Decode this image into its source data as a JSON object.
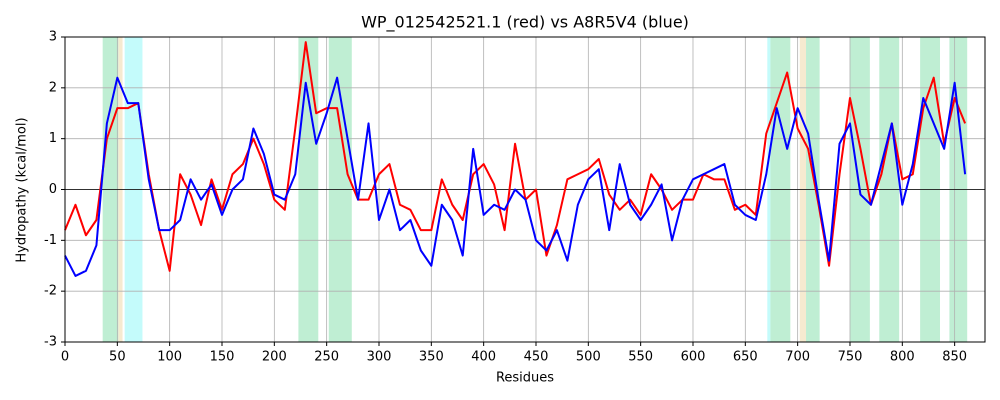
{
  "chart_data": {
    "type": "line",
    "title": "WP_012542521.1 (red) vs A8R5V4 (blue)",
    "x_label": "Residues",
    "y_label": "Hydropathy (kcal/mol)",
    "x": [
      0,
      10,
      20,
      30,
      40,
      50,
      60,
      70,
      80,
      90,
      100,
      110,
      120,
      130,
      140,
      150,
      160,
      170,
      180,
      190,
      200,
      210,
      220,
      230,
      240,
      250,
      260,
      270,
      280,
      290,
      300,
      310,
      320,
      330,
      340,
      350,
      360,
      370,
      380,
      390,
      400,
      410,
      420,
      430,
      440,
      450,
      460,
      470,
      480,
      490,
      500,
      510,
      520,
      530,
      540,
      550,
      560,
      570,
      580,
      590,
      600,
      610,
      620,
      630,
      640,
      650,
      660,
      670,
      680,
      690,
      700,
      710,
      720,
      730,
      740,
      750,
      760,
      770,
      780,
      790,
      800,
      810,
      820,
      830,
      840,
      850,
      860
    ],
    "series": [
      {
        "color": "#ff0000",
        "values": [
          -0.8,
          -0.3,
          -0.9,
          -0.6,
          1.0,
          1.6,
          1.6,
          1.7,
          0.3,
          -0.8,
          -1.6,
          0.3,
          -0.1,
          -0.7,
          0.2,
          -0.4,
          0.3,
          0.5,
          1.0,
          0.5,
          -0.2,
          -0.4,
          1.2,
          2.9,
          1.5,
          1.6,
          1.6,
          0.3,
          -0.2,
          -0.2,
          0.3,
          0.5,
          -0.3,
          -0.4,
          -0.8,
          -0.8,
          0.2,
          -0.3,
          -0.6,
          0.3,
          0.5,
          0.1,
          -0.8,
          0.9,
          -0.2,
          0,
          -1.3,
          -0.7,
          0.2,
          0.3,
          0.4,
          0.6,
          -0.1,
          -0.4,
          -0.2,
          -0.5,
          0.3,
          0,
          -0.4,
          -0.2,
          -0.2,
          0.3,
          0.2,
          0.2,
          -0.4,
          -0.3,
          -0.5,
          1.1,
          1.7,
          2.3,
          1.2,
          0.8,
          -0.3,
          -1.5,
          0.3,
          1.8,
          0.8,
          -0.3,
          0.3,
          1.3,
          0.2,
          0.3,
          1.6,
          2.2,
          0.9,
          1.8,
          1.3
        ]
      },
      {
        "color": "#0000ff",
        "values": [
          -1.3,
          -1.7,
          -1.6,
          -1.1,
          1.3,
          2.2,
          1.7,
          1.7,
          0.2,
          -0.8,
          -0.8,
          -0.6,
          0.2,
          -0.2,
          0.1,
          -0.5,
          0,
          0.2,
          1.2,
          0.7,
          -0.1,
          -0.2,
          0.3,
          2.1,
          0.9,
          1.5,
          2.2,
          1.0,
          -0.2,
          1.3,
          -0.6,
          0,
          -0.8,
          -0.6,
          -1.2,
          -1.5,
          -0.3,
          -0.6,
          -1.3,
          0.8,
          -0.5,
          -0.3,
          -0.4,
          0,
          -0.2,
          -1.0,
          -1.2,
          -0.8,
          -1.4,
          -0.3,
          0.2,
          0.4,
          -0.8,
          0.5,
          -0.3,
          -0.6,
          -0.3,
          0.1,
          -1.0,
          -0.2,
          0.2,
          0.3,
          0.4,
          0.5,
          -0.3,
          -0.5,
          -0.6,
          0.3,
          1.6,
          0.8,
          1.6,
          1.1,
          -0.2,
          -1.4,
          0.9,
          1.3,
          -0.1,
          -0.3,
          0.5,
          1.3,
          -0.3,
          0.5,
          1.8,
          1.3,
          0.8,
          2.1,
          0.3
        ]
      }
    ],
    "spans": [
      {
        "start": 36,
        "end": 51,
        "color": "#bfeed3"
      },
      {
        "start": 51,
        "end": 55,
        "color": "#f6ead0"
      },
      {
        "start": 57,
        "end": 74,
        "color": "#c4fbfb"
      },
      {
        "start": 223,
        "end": 242,
        "color": "#bfeed3"
      },
      {
        "start": 252,
        "end": 274,
        "color": "#bfeed3"
      },
      {
        "start": 671,
        "end": 674,
        "color": "#c4fbfb"
      },
      {
        "start": 674,
        "end": 693,
        "color": "#bfeed3"
      },
      {
        "start": 702,
        "end": 708,
        "color": "#f6ead0"
      },
      {
        "start": 708,
        "end": 721,
        "color": "#bfeed3"
      },
      {
        "start": 750,
        "end": 769,
        "color": "#bfeed3"
      },
      {
        "start": 778,
        "end": 797,
        "color": "#bfeed3"
      },
      {
        "start": 817,
        "end": 836,
        "color": "#bfeed3"
      },
      {
        "start": 845,
        "end": 862,
        "color": "#bfeed3"
      }
    ],
    "xlim": [
      0,
      879
    ],
    "ylim": [
      -3,
      3
    ],
    "xticks": [
      0,
      50,
      100,
      150,
      200,
      250,
      300,
      350,
      400,
      450,
      500,
      550,
      600,
      650,
      700,
      750,
      800,
      850
    ],
    "yticks": [
      -3,
      -2,
      -1,
      0,
      1,
      2,
      3
    ],
    "grid": true,
    "zero_line": true
  }
}
